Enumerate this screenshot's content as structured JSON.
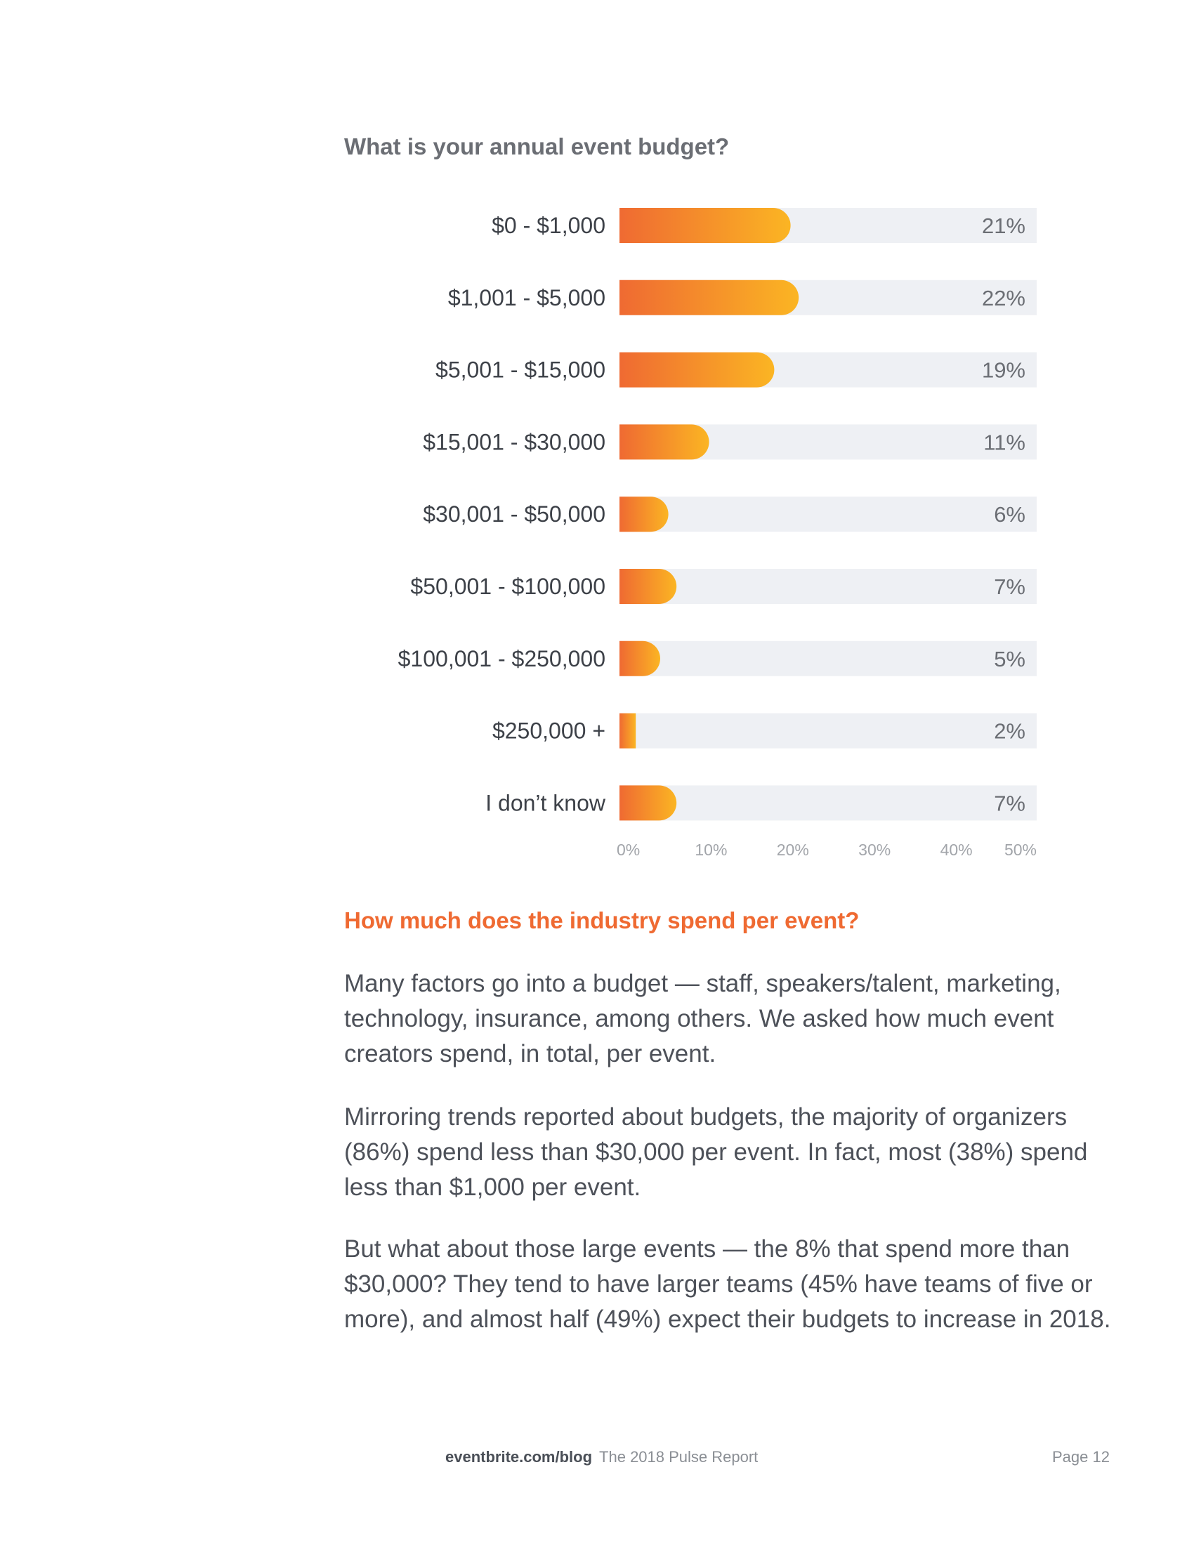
{
  "chart_data": {
    "type": "bar",
    "orientation": "horizontal",
    "title": "What is your annual event budget?",
    "categories": [
      "$0 - $1,000",
      "$1,001 - $5,000",
      "$5,001 - $15,000",
      "$15,001 - $30,000",
      "$30,001 - $50,000",
      "$50,001 - $100,000",
      "$100,001 - $250,000",
      "$250,000 +",
      "I don’t know"
    ],
    "values": [
      21,
      22,
      19,
      11,
      6,
      7,
      5,
      2,
      7
    ],
    "value_labels": [
      "21%",
      "22%",
      "19%",
      "11%",
      "6%",
      "7%",
      "5%",
      "2%",
      "7%"
    ],
    "xlim": [
      0,
      50
    ],
    "x_ticks": [
      "0%",
      "10%",
      "20%",
      "30%",
      "40%",
      "50%"
    ],
    "grid": false,
    "colors": {
      "gradient_start": "#ef6a32",
      "gradient_end": "#fbb523",
      "track": "#eef0f4",
      "category_text": "#3d4148",
      "value_text": "#6b6e74",
      "tick_text": "#a2a5aa"
    }
  },
  "section": {
    "heading": "How much does the industry spend per event?",
    "paragraphs": [
      "Many factors go into a budget — staff, speakers/talent, marketing, technology, insurance, among others. We asked how much event creators spend, in total, per event.",
      "Mirroring trends reported about budgets, the majority of organizers (86%) spend less than $30,000 per event. In fact, most (38%) spend less than $1,000 per event.",
      "But what about those large events — the 8% that spend more than $30,000? They tend to have larger teams (45% have teams of five or more), and almost half (49%) expect their budgets to increase in 2018."
    ]
  },
  "footer": {
    "site": "eventbrite.com/blog",
    "report": "The 2018 Pulse Report",
    "page": "Page  12"
  }
}
